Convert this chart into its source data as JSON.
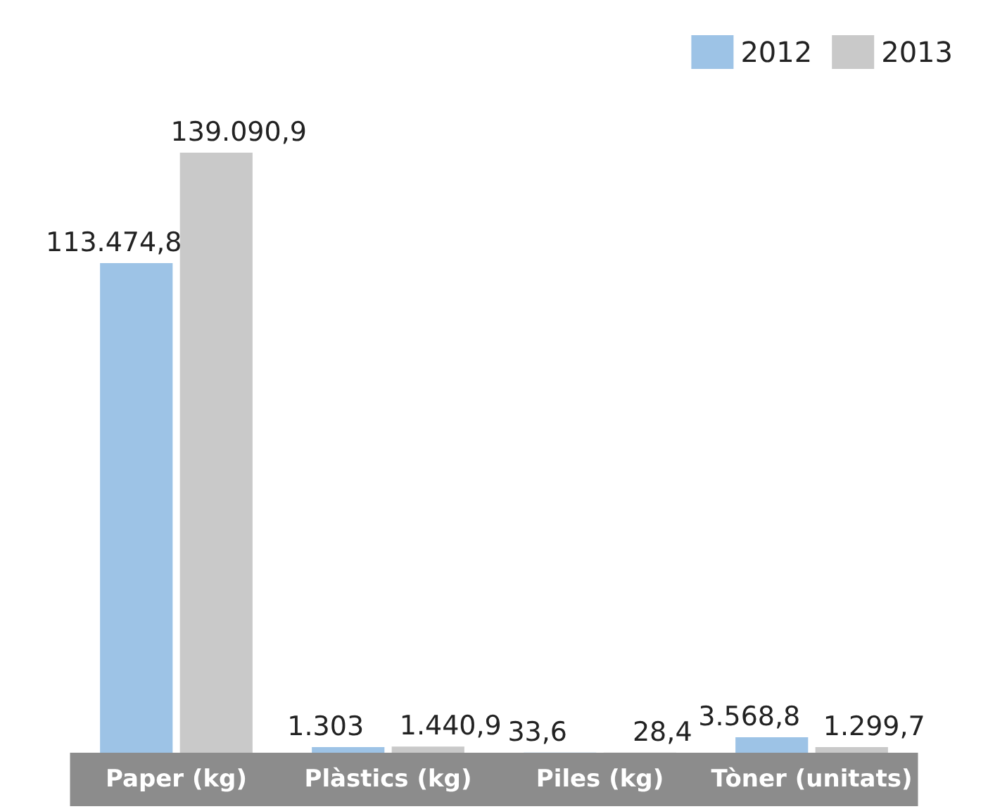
{
  "chart_data": {
    "type": "bar",
    "categories": [
      "Paper (kg)",
      "Plàstics (kg)",
      "Piles (kg)",
      "Tòner (unitats)"
    ],
    "series": [
      {
        "name": "2012",
        "color": "#9dc3e6",
        "values": [
          113474.8,
          1303,
          33.6,
          3568.8
        ],
        "value_labels": [
          "113.474,8",
          "1.303",
          "33,6",
          "3.568,8"
        ]
      },
      {
        "name": "2013",
        "color": "#c9c9c9",
        "values": [
          139090.9,
          1440.9,
          28.4,
          1299.7
        ],
        "value_labels": [
          "139.090,9",
          "1.440,9",
          "28,4",
          "1.299,7"
        ]
      }
    ],
    "legend": "top right"
  }
}
